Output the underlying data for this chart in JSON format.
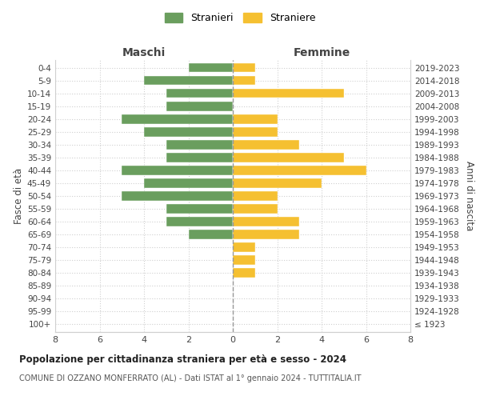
{
  "age_groups": [
    "100+",
    "95-99",
    "90-94",
    "85-89",
    "80-84",
    "75-79",
    "70-74",
    "65-69",
    "60-64",
    "55-59",
    "50-54",
    "45-49",
    "40-44",
    "35-39",
    "30-34",
    "25-29",
    "20-24",
    "15-19",
    "10-14",
    "5-9",
    "0-4"
  ],
  "birth_years": [
    "≤ 1923",
    "1924-1928",
    "1929-1933",
    "1934-1938",
    "1939-1943",
    "1944-1948",
    "1949-1953",
    "1954-1958",
    "1959-1963",
    "1964-1968",
    "1969-1973",
    "1974-1978",
    "1979-1983",
    "1984-1988",
    "1989-1993",
    "1994-1998",
    "1999-2003",
    "2004-2008",
    "2009-2013",
    "2014-2018",
    "2019-2023"
  ],
  "maschi": [
    0,
    0,
    0,
    0,
    0,
    0,
    0,
    2,
    3,
    3,
    5,
    4,
    5,
    3,
    3,
    4,
    5,
    3,
    3,
    4,
    2
  ],
  "femmine": [
    0,
    0,
    0,
    0,
    1,
    1,
    1,
    3,
    3,
    2,
    2,
    4,
    6,
    5,
    3,
    2,
    2,
    0,
    5,
    1,
    1
  ],
  "color_maschi": "#6a9e5e",
  "color_femmine": "#f5c031",
  "background_color": "#ffffff",
  "grid_color": "#d0d0d0",
  "title": "Popolazione per cittadinanza straniera per età e sesso - 2024",
  "subtitle": "COMUNE DI OZZANO MONFERRATO (AL) - Dati ISTAT al 1° gennaio 2024 - TUTTITALIA.IT",
  "label_maschi": "Maschi",
  "label_femmine": "Femmine",
  "ylabel_left": "Fasce di età",
  "ylabel_right": "Anni di nascita",
  "legend_stranieri": "Stranieri",
  "legend_straniere": "Straniere",
  "xlim": 8,
  "xticks": [
    -8,
    -6,
    -4,
    -2,
    0,
    2,
    4,
    6,
    8
  ],
  "xtick_labels": [
    "8",
    "6",
    "4",
    "2",
    "0",
    "2",
    "4",
    "6",
    "8"
  ]
}
